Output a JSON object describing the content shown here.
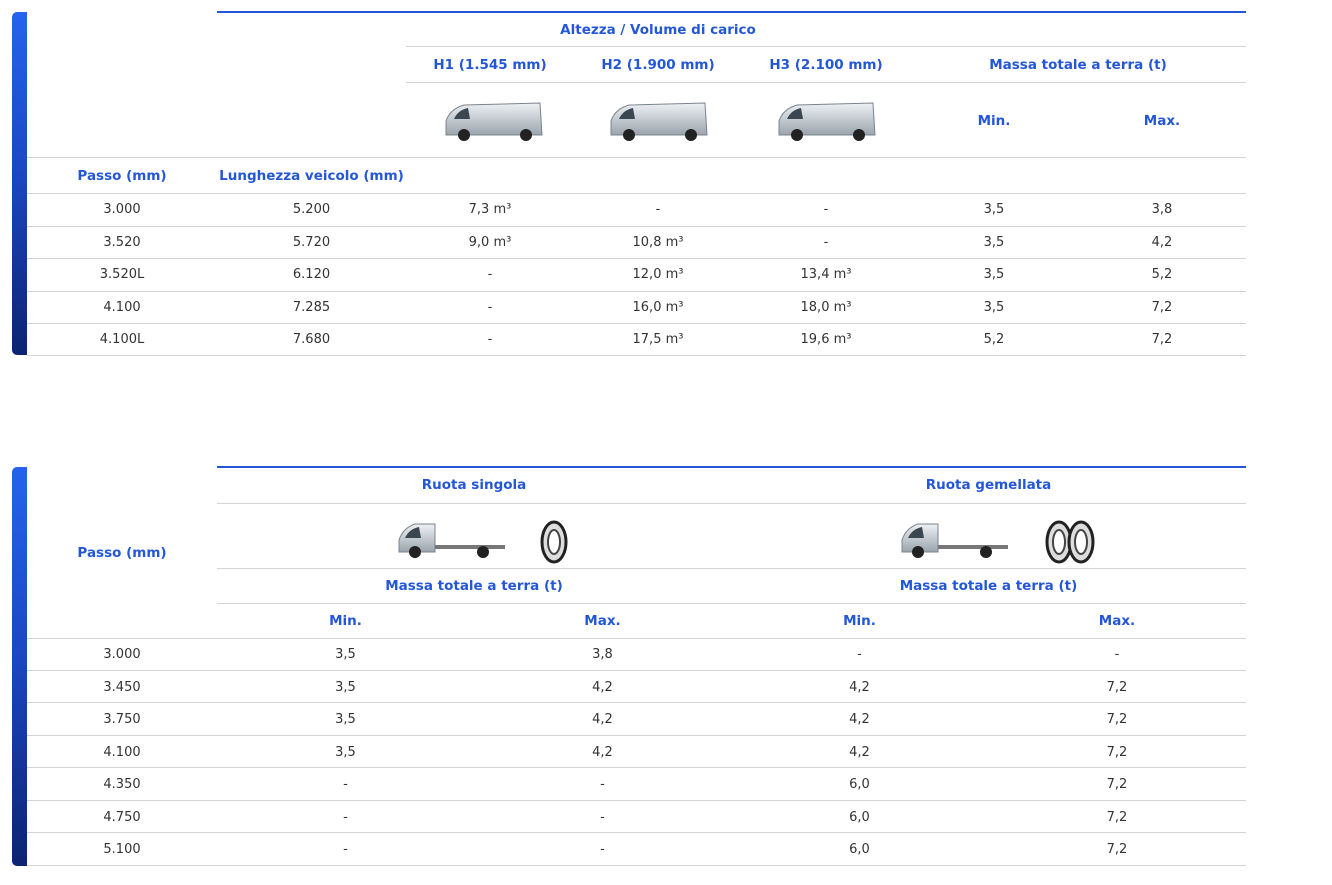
{
  "table1": {
    "header": {
      "group": "Altezza / Volume di carico",
      "h1": "H1 (1.545 mm)",
      "h2": "H2 (1.900 mm)",
      "h3": "H3 (2.100 mm)",
      "mass": "Massa totale a terra (t)",
      "min": "Min.",
      "max": "Max.",
      "passo": "Passo (mm)",
      "length": "Lunghezza veicolo (mm)"
    },
    "rows": [
      [
        "3.000",
        "5.200",
        "7,3 m³",
        "-",
        "-",
        "3,5",
        "3,8"
      ],
      [
        "3.520",
        "5.720",
        "9,0 m³",
        "10,8 m³",
        "-",
        "3,5",
        "4,2"
      ],
      [
        "3.520L",
        "6.120",
        "-",
        "12,0 m³",
        "13,4 m³",
        "3,5",
        "5,2"
      ],
      [
        "4.100",
        "7.285",
        "-",
        "16,0 m³",
        "18,0 m³",
        "3,5",
        "7,2"
      ],
      [
        "4.100L",
        "7.680",
        "-",
        "17,5 m³",
        "19,6 m³",
        "5,2",
        "7,2"
      ]
    ]
  },
  "table2": {
    "header": {
      "single": "Ruota singola",
      "twin": "Ruota gemellata",
      "mass_single": "Massa totale a terra (t)",
      "mass_twin": "Massa totale a terra (t)",
      "min_single": "Min.",
      "max_single": "Max.",
      "min_twin": "Min.",
      "max_twin": "Max.",
      "passo": "Passo (mm)"
    },
    "rows": [
      [
        "3.000",
        "3,5",
        "3,8",
        "-",
        "-"
      ],
      [
        "3.450",
        "3,5",
        "4,2",
        "4,2",
        "7,2"
      ],
      [
        "3.750",
        "3,5",
        "4,2",
        "4,2",
        "7,2"
      ],
      [
        "4.100",
        "3,5",
        "4,2",
        "4,2",
        "7,2"
      ],
      [
        "4.350",
        "-",
        "-",
        "6,0",
        "7,2"
      ],
      [
        "4.750",
        "-",
        "-",
        "6,0",
        "7,2"
      ],
      [
        "5.100",
        "-",
        "-",
        "6,0",
        "7,2"
      ]
    ]
  }
}
